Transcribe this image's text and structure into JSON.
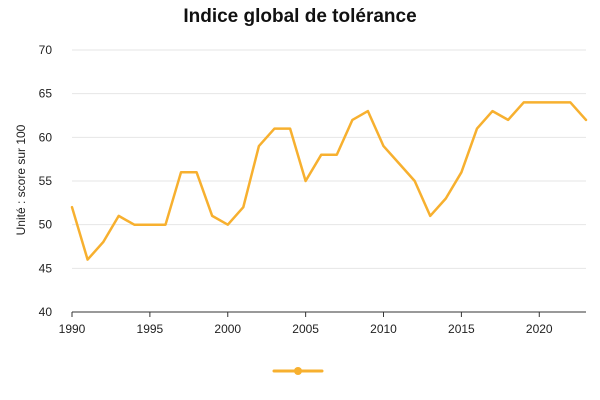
{
  "chart_data": {
    "type": "line",
    "title": "Indice global de tolérance",
    "xlabel": "",
    "ylabel": "Unité : score sur 100",
    "xlim": [
      1990,
      2023
    ],
    "ylim": [
      40,
      70
    ],
    "x_ticks": [
      1990,
      1995,
      2000,
      2005,
      2010,
      2015,
      2020
    ],
    "y_ticks": [
      40,
      45,
      50,
      55,
      60,
      65,
      70
    ],
    "grid": "horizontal",
    "legend": "bottom-center",
    "series": [
      {
        "color": "#F7B02F",
        "x": [
          1990,
          1991,
          1992,
          1993,
          1994,
          1995,
          1996,
          1997,
          1998,
          1999,
          2000,
          2001,
          2002,
          2003,
          2004,
          2005,
          2006,
          2007,
          2008,
          2009,
          2010,
          2011,
          2012,
          2013,
          2014,
          2015,
          2016,
          2017,
          2018,
          2019,
          2020,
          2021,
          2022,
          2023
        ],
        "values": [
          52,
          46,
          48,
          51,
          50,
          50,
          50,
          56,
          56,
          51,
          50,
          52,
          59,
          61,
          61,
          55,
          58,
          58,
          62,
          63,
          59,
          57,
          55,
          51,
          53,
          56,
          61,
          63,
          62,
          64,
          64,
          64,
          64,
          62
        ]
      }
    ]
  }
}
